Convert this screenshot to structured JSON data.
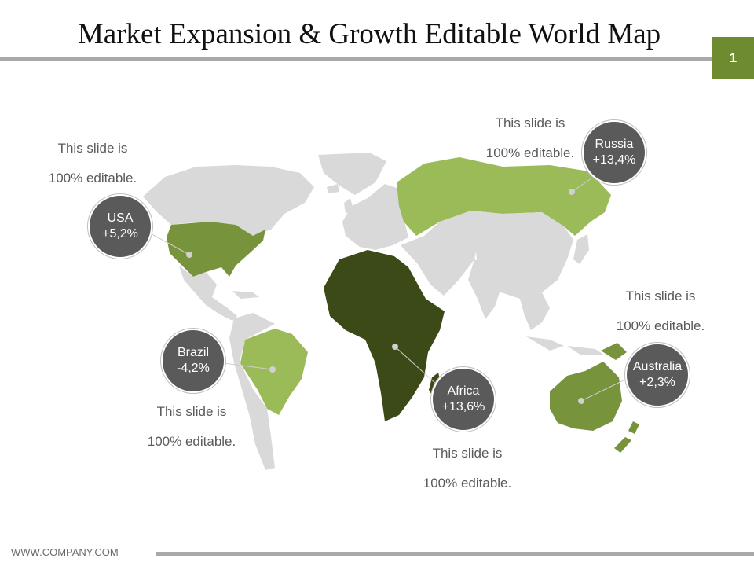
{
  "slide": {
    "title": "Market Expansion & Growth Editable World Map",
    "page_number": "1",
    "footer": "WWW.COMPANY.COM"
  },
  "colors": {
    "land": "#d9d9d9",
    "light_green": "#9bbb59",
    "mid_green": "#77933c",
    "dark_green": "#3b4a17",
    "bubble": "#5a5a5a",
    "accent_badge": "#6e8b2f"
  },
  "regions": [
    {
      "name": "USA",
      "value": "+5,2%",
      "fill": "mid-green"
    },
    {
      "name": "Russia",
      "value": "+13,4%",
      "fill": "light-green"
    },
    {
      "name": "Brazil",
      "value": "-4,2%",
      "fill": "light-green"
    },
    {
      "name": "Africa",
      "value": "+13,6%",
      "fill": "dark-green"
    },
    {
      "name": "Australia",
      "value": "+2,3%",
      "fill": "mid-green"
    }
  ],
  "notes": [
    {
      "line1": "This slide is",
      "line2": "100% editable."
    },
    {
      "line1": "This slide is",
      "line2": "100% editable."
    },
    {
      "line1": "This slide is",
      "line2": "100% editable."
    },
    {
      "line1": "This slide is",
      "line2": "100% editable."
    },
    {
      "line1": "This slide is",
      "line2": "100% editable."
    }
  ]
}
